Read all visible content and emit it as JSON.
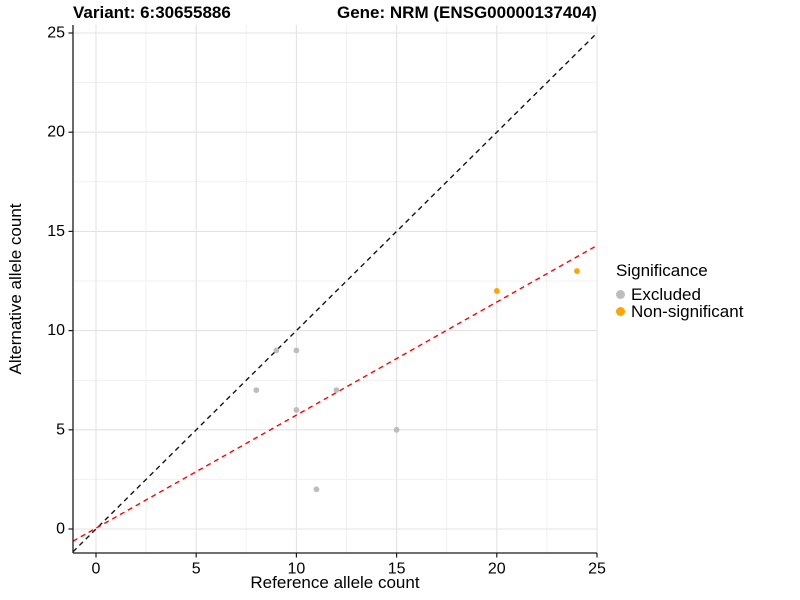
{
  "title": {
    "variant": "Variant: 6:30655886",
    "gene": "Gene: NRM (ENSG00000137404)"
  },
  "chart_data": {
    "type": "scatter",
    "xlabel": "Reference allele count",
    "ylabel": "Alternative allele count",
    "xlim": [
      -1.15,
      25.05
    ],
    "ylim": [
      -1.21,
      25.35
    ],
    "x_ticks": [
      0,
      5,
      10,
      15,
      20,
      25
    ],
    "y_ticks": [
      0,
      5,
      10,
      15,
      20,
      25
    ],
    "minor_ticks": [
      2.5,
      7.5,
      12.5,
      17.5,
      22.5
    ],
    "grid": true,
    "series": [
      {
        "name": "Excluded",
        "color": "#BDBDBD",
        "points": [
          [
            8,
            7
          ],
          [
            9,
            9
          ],
          [
            10,
            9
          ],
          [
            10,
            6
          ],
          [
            11,
            2
          ],
          [
            12,
            7
          ],
          [
            15,
            5
          ]
        ]
      },
      {
        "name": "Non-significant",
        "color": "#FFA500",
        "points": [
          [
            20,
            12
          ],
          [
            24,
            13
          ]
        ]
      }
    ],
    "lines": [
      {
        "name": "identity-line",
        "slope": 1,
        "intercept": 0,
        "color": "#141414",
        "style": "dashed"
      },
      {
        "name": "fit-line",
        "slope": 0.57,
        "intercept": 0.04,
        "color": "#FF0000",
        "style": "dashed"
      }
    ],
    "legend": {
      "title": "Significance",
      "position": "right",
      "entries": [
        {
          "label": "Excluded",
          "color": "#BDBDBD"
        },
        {
          "label": "Non-significant",
          "color": "#FFA500"
        }
      ]
    },
    "colors": {
      "grid_major": "#E3E3E3",
      "grid_minor": "#F1F1F1",
      "axis": "#1A1A1A",
      "tick_label": "#000000"
    }
  }
}
